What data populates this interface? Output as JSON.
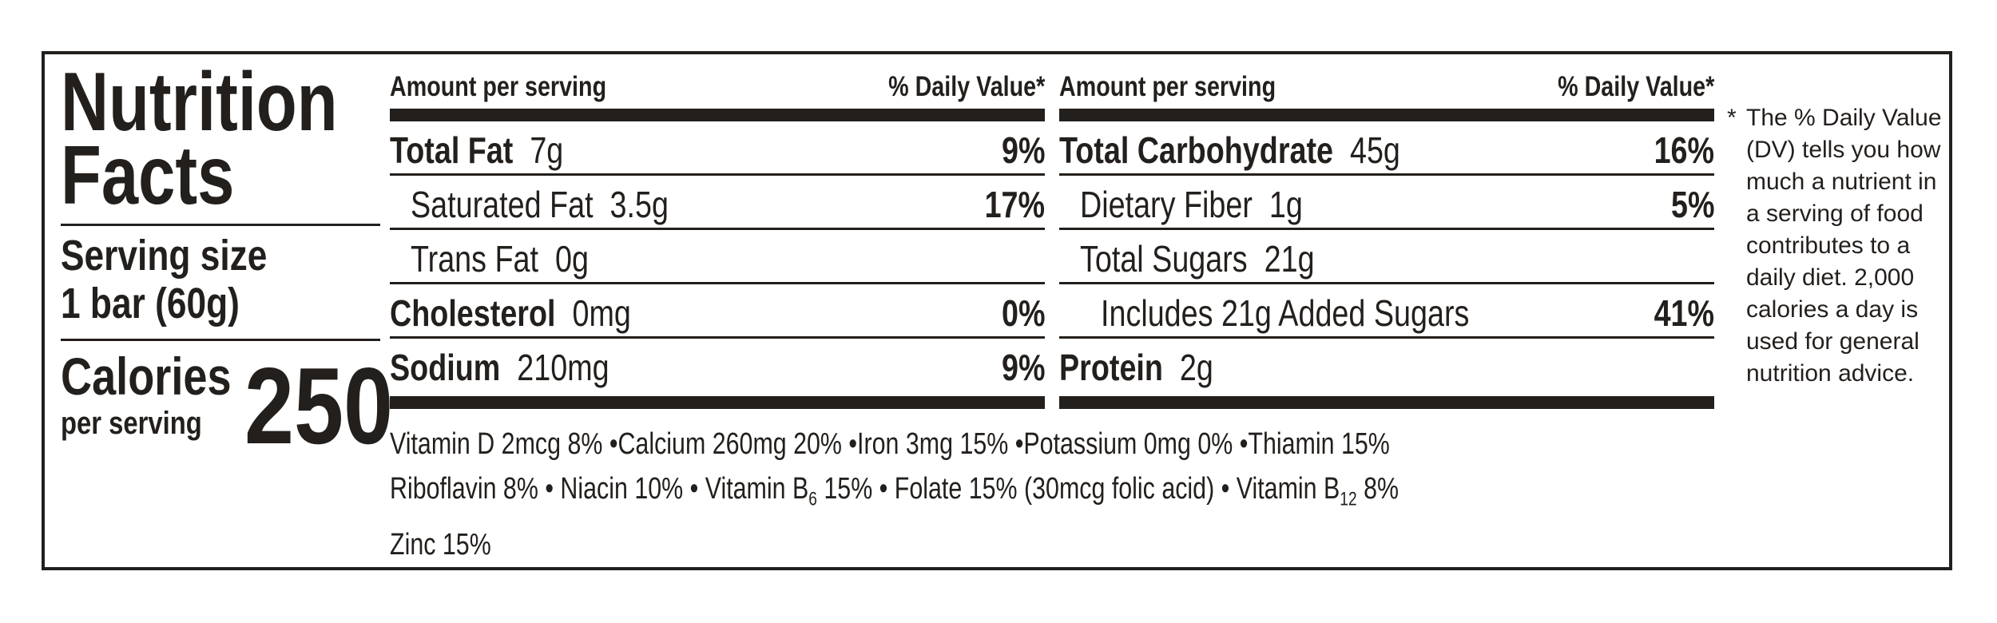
{
  "title_line1": "Nutrition",
  "title_line2": "Facts",
  "serving_size_label": "Serving size",
  "serving_size_value": "1 bar (60g)",
  "calories_label": "Calories",
  "calories_sub": "per serving",
  "calories_value": "250",
  "left_table": {
    "header_left": "Amount per serving",
    "header_right": "% Daily Value*",
    "rows": [
      {
        "name": "Total Fat",
        "amount": "7g",
        "dv": "9%"
      },
      {
        "name": "Saturated Fat",
        "amount": "3.5g",
        "dv": "17%"
      },
      {
        "name": "Trans Fat",
        "amount": "0g",
        "dv": ""
      },
      {
        "name": "Cholesterol",
        "amount": "0mg",
        "dv": "0%"
      },
      {
        "name": "Sodium",
        "amount": "210mg",
        "dv": "9%"
      }
    ]
  },
  "right_table": {
    "header_left": "Amount per serving",
    "header_right": "% Daily Value*",
    "rows": [
      {
        "name": "Total Carbohydrate",
        "amount": "45g",
        "dv": "16%"
      },
      {
        "name": "Dietary Fiber",
        "amount": "1g",
        "dv": "5%"
      },
      {
        "name": "Total Sugars",
        "amount": "21g",
        "dv": ""
      },
      {
        "name": "Includes 21g Added Sugars",
        "amount": "",
        "dv": "41%"
      },
      {
        "name": "Protein",
        "amount": "2g",
        "dv": ""
      }
    ]
  },
  "vitamins": {
    "line1": "Vitamin D  2mcg  8% •Calcium  260mg  20% •Iron  3mg  15% •Potassium  0mg  0% •Thiamin  15%",
    "line2_a": "Riboflavin  8% • Niacin  10% • Vitamin B",
    "line2_b6": "6",
    "line2_b": "  15% • Folate  15% (30mcg folic acid) • Vitamin B",
    "line2_b12": "12",
    "line2_c": "  8%",
    "line3": "Zinc  15%"
  },
  "footnote": {
    "star": "*",
    "text": "The % Daily Value (DV) tells you how much a nutrient in a serving of food contributes to a daily diet. 2,000 calories a day is used for general nutrition advice."
  }
}
